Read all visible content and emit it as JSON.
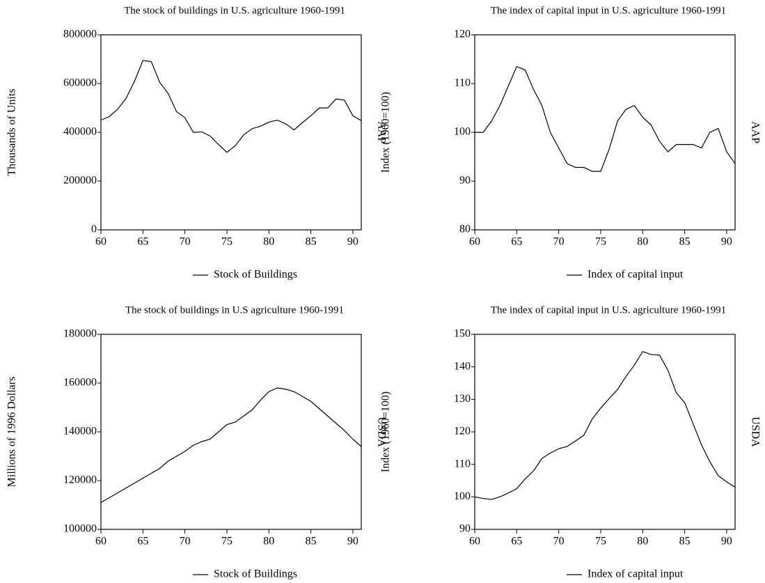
{
  "chart_data": [
    {
      "type": "line",
      "title": "The stock of buildings in U.S. agriculture 1960-1991",
      "ylabel": "Thousands of Units",
      "source": "AAP",
      "x": [
        60,
        61,
        62,
        63,
        64,
        65,
        66,
        67,
        68,
        69,
        70,
        71,
        72,
        73,
        74,
        75,
        76,
        77,
        78,
        79,
        80,
        81,
        82,
        83,
        84,
        85,
        86,
        87,
        88,
        89,
        90,
        91
      ],
      "series": [
        {
          "name": "Stock of Buildings",
          "color": "#000000",
          "values": [
            450000,
            465000,
            495000,
            540000,
            610000,
            695000,
            690000,
            605000,
            560000,
            485000,
            460000,
            400000,
            402000,
            385000,
            350000,
            318000,
            345000,
            390000,
            415000,
            425000,
            442000,
            450000,
            435000,
            410000,
            440000,
            468000,
            500000,
            500000,
            537000,
            532000,
            468000,
            448000
          ]
        }
      ],
      "xlim": [
        60,
        91
      ],
      "xticks": [
        60,
        65,
        70,
        75,
        80,
        85,
        90
      ],
      "ylim": [
        0,
        800000
      ],
      "yticks": [
        0,
        200000,
        400000,
        600000,
        800000
      ]
    },
    {
      "type": "line",
      "title": "The index of capital input in U.S. agriculture 1960-1991",
      "ylabel": "Index (1960=100)",
      "source": "AAP",
      "x": [
        60,
        61,
        62,
        63,
        64,
        65,
        66,
        67,
        68,
        69,
        70,
        71,
        72,
        73,
        74,
        75,
        76,
        77,
        78,
        79,
        80,
        81,
        82,
        83,
        84,
        85,
        86,
        87,
        88,
        89,
        90,
        91
      ],
      "series": [
        {
          "name": "Index of capital input",
          "color": "#000000",
          "values": [
            100,
            100,
            102.3,
            105.5,
            109.5,
            113.5,
            112.8,
            108.8,
            105.5,
            100,
            96.8,
            93.6,
            92.8,
            92.8,
            92,
            92,
            96.5,
            102.3,
            104.7,
            105.5,
            103.1,
            101.5,
            98.2,
            96,
            97.5,
            97.5,
            97.5,
            96.8,
            100,
            100.8,
            96,
            93.6
          ]
        }
      ],
      "xlim": [
        60,
        91
      ],
      "xticks": [
        60,
        65,
        70,
        75,
        80,
        85,
        90
      ],
      "ylim": [
        80,
        120
      ],
      "yticks": [
        80,
        90,
        100,
        110,
        120
      ]
    },
    {
      "type": "line",
      "title": "The stock of buildings in U.S agriculture 1960-1991",
      "ylabel": "Millions of 1996 Dollars",
      "source": "USDA",
      "x": [
        60,
        61,
        62,
        63,
        64,
        65,
        66,
        67,
        68,
        69,
        70,
        71,
        72,
        73,
        74,
        75,
        76,
        77,
        78,
        79,
        80,
        81,
        82,
        83,
        84,
        85,
        86,
        87,
        88,
        89,
        90,
        91
      ],
      "series": [
        {
          "name": "Stock of Buildings",
          "color": "#000000",
          "values": [
            111000,
            113000,
            115000,
            117000,
            119000,
            121000,
            123000,
            125000,
            128000,
            130000,
            132000,
            134500,
            136000,
            137000,
            140000,
            143000,
            144000,
            146500,
            149000,
            153000,
            156500,
            158000,
            157500,
            156500,
            154500,
            152500,
            149500,
            146500,
            143500,
            140500,
            137000,
            134000
          ]
        }
      ],
      "xlim": [
        60,
        91
      ],
      "xticks": [
        60,
        65,
        70,
        75,
        80,
        85,
        90
      ],
      "ylim": [
        100000,
        180000
      ],
      "yticks": [
        100000,
        120000,
        140000,
        160000,
        180000
      ]
    },
    {
      "type": "line",
      "title": "The index of capital input in U.S. agriculture 1960-1991",
      "ylabel": "Index (1960=100)",
      "source": "USDA",
      "x": [
        60,
        61,
        62,
        63,
        64,
        65,
        66,
        67,
        68,
        69,
        70,
        71,
        72,
        73,
        74,
        75,
        76,
        77,
        78,
        79,
        80,
        81,
        82,
        83,
        84,
        85,
        86,
        87,
        88,
        89,
        90,
        91
      ],
      "series": [
        {
          "name": "Index of capital input",
          "color": "#000000",
          "values": [
            100,
            99.5,
            99.2,
            100,
            101.2,
            102.5,
            105.5,
            108,
            111.8,
            113.5,
            114.8,
            115.5,
            117.2,
            119,
            124,
            127.3,
            130.2,
            133,
            137,
            140.5,
            144.7,
            143.8,
            143.6,
            139,
            132,
            129,
            122.5,
            116,
            110.8,
            106.5,
            104.6,
            103
          ]
        }
      ],
      "xlim": [
        60,
        91
      ],
      "xticks": [
        60,
        65,
        70,
        75,
        80,
        85,
        90
      ],
      "ylim": [
        90,
        150
      ],
      "yticks": [
        90,
        100,
        110,
        120,
        130,
        140,
        150
      ]
    }
  ]
}
